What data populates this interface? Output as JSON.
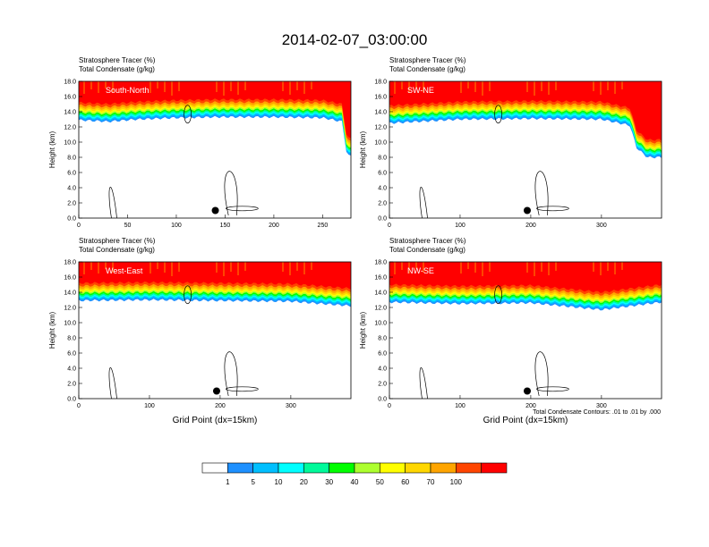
{
  "figure": {
    "title": "2014-02-07_03:00:00",
    "contour_note": "Total Condensate Contours: .01 to .01 by .000"
  },
  "colorbar": {
    "colors": [
      "#ffffff",
      "#1e90ff",
      "#00bfff",
      "#00ffff",
      "#00fa9a",
      "#00ff00",
      "#adff2f",
      "#ffff00",
      "#ffd700",
      "#ffa500",
      "#ff4500",
      "#ff0000"
    ],
    "labels": [
      "1",
      "5",
      "10",
      "20",
      "30",
      "40",
      "50",
      "60",
      "70",
      "100"
    ]
  },
  "chart_data": [
    {
      "type": "heatmap",
      "panel": "South-North",
      "title_lines": [
        "Stratosphere Tracer   (%)",
        "Total Condensate   (g/kg)"
      ],
      "label": "South-North",
      "xlabel": "",
      "ylabel": "Height (km)",
      "xlim": [
        0,
        279
      ],
      "ylim": [
        0,
        18
      ],
      "xticks": [
        "0",
        "50",
        "100",
        "150",
        "200",
        "250"
      ],
      "xtick_values": [
        0,
        50,
        100,
        150,
        200,
        250
      ],
      "yticks": [
        "0.0",
        "2.0",
        "4.0",
        "6.0",
        "8.0",
        "10.0",
        "12.0",
        "14.0",
        "16.0",
        "18.0"
      ],
      "tracer_base_km": [
        [
          0,
          15.2
        ],
        [
          30,
          15.0
        ],
        [
          60,
          15.3
        ],
        [
          100,
          15.5
        ],
        [
          140,
          15.6
        ],
        [
          200,
          15.6
        ],
        [
          250,
          15.5
        ],
        [
          270,
          15.0
        ],
        [
          275,
          10.5
        ],
        [
          279,
          10.5
        ]
      ],
      "marker": {
        "x": 140,
        "y": 1.0
      }
    },
    {
      "type": "heatmap",
      "panel": "SW-NE",
      "title_lines": [
        "Stratosphere Tracer   (%)",
        "Total Condensate   (g/kg)"
      ],
      "label": "SW-NE",
      "xlabel": "",
      "ylabel": "Height (km)",
      "xlim": [
        0,
        385
      ],
      "ylim": [
        0,
        18
      ],
      "xticks": [
        "0",
        "100",
        "200",
        "300"
      ],
      "xtick_values": [
        0,
        100,
        200,
        300
      ],
      "yticks": [
        "0.0",
        "2.0",
        "4.0",
        "6.0",
        "8.0",
        "10.0",
        "12.0",
        "14.0",
        "16.0",
        "18.0"
      ],
      "tracer_base_km": [
        [
          0,
          14.8
        ],
        [
          40,
          15.0
        ],
        [
          100,
          15.3
        ],
        [
          200,
          15.4
        ],
        [
          300,
          15.3
        ],
        [
          340,
          14.5
        ],
        [
          350,
          11.5
        ],
        [
          365,
          10.3
        ],
        [
          385,
          10.3
        ]
      ],
      "marker": {
        "x": 195,
        "y": 1.0
      }
    },
    {
      "type": "heatmap",
      "panel": "West-East",
      "title_lines": [
        "Stratosphere Tracer   (%)",
        "Total Condensate   (g/kg)"
      ],
      "label": "West-East",
      "xlabel": "Grid Point (dx=15km)",
      "ylabel": "Height (km)",
      "xlim": [
        0,
        385
      ],
      "ylim": [
        0,
        18
      ],
      "xticks": [
        "0",
        "100",
        "200",
        "300"
      ],
      "xtick_values": [
        0,
        100,
        200,
        300
      ],
      "yticks": [
        "0.0",
        "2.0",
        "4.0",
        "6.0",
        "8.0",
        "10.0",
        "12.0",
        "14.0",
        "16.0",
        "18.0"
      ],
      "tracer_base_km": [
        [
          0,
          15.2
        ],
        [
          100,
          15.3
        ],
        [
          200,
          15.2
        ],
        [
          300,
          15.1
        ],
        [
          385,
          14.5
        ]
      ],
      "marker": {
        "x": 195,
        "y": 1.0
      }
    },
    {
      "type": "heatmap",
      "panel": "NW-SE",
      "title_lines": [
        "Stratosphere Tracer   (%)",
        "Total Condensate   (g/kg)"
      ],
      "label": "NW-SE",
      "xlabel": "Grid Point (dx=15km)",
      "ylabel": "Height (km)",
      "xlim": [
        0,
        385
      ],
      "ylim": [
        0,
        18
      ],
      "xticks": [
        "0",
        "100",
        "200",
        "300"
      ],
      "xtick_values": [
        0,
        100,
        200,
        300
      ],
      "yticks": [
        "0.0",
        "2.0",
        "4.0",
        "6.0",
        "8.0",
        "10.0",
        "12.0",
        "14.0",
        "16.0",
        "18.0"
      ],
      "tracer_base_km": [
        [
          0,
          15.0
        ],
        [
          100,
          14.8
        ],
        [
          200,
          14.9
        ],
        [
          300,
          14.0
        ],
        [
          385,
          15.0
        ]
      ],
      "marker": {
        "x": 195,
        "y": 1.0
      }
    }
  ]
}
